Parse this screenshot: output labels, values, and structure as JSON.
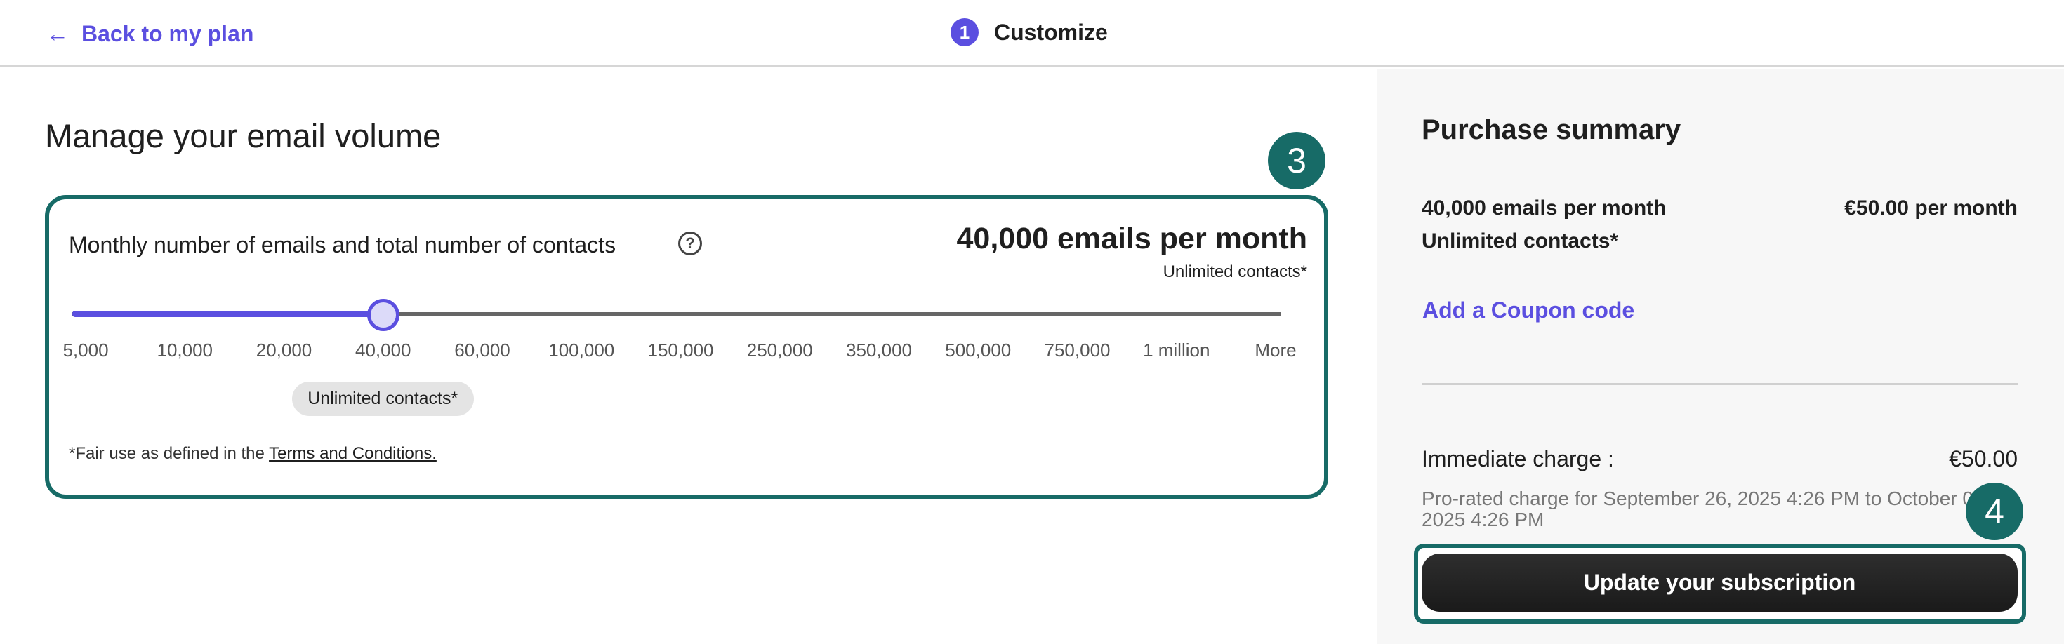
{
  "header": {
    "back_label": "Back to my plan",
    "step_number": "1",
    "step_label": "Customize"
  },
  "main": {
    "title": "Manage your email volume",
    "annotation": "3",
    "slider_label": "Monthly number of emails and total number of contacts",
    "selected_volume": "40,000 emails per month",
    "selected_contacts": "Unlimited contacts*",
    "ticks": [
      "5,000",
      "10,000",
      "20,000",
      "40,000",
      "60,000",
      "100,000",
      "150,000",
      "250,000",
      "350,000",
      "500,000",
      "750,000",
      "1 million",
      "More"
    ],
    "selected_index": 3,
    "pill": "Unlimited contacts*",
    "footnote_prefix": "*Fair use as defined in the ",
    "footnote_link": "Terms and Conditions."
  },
  "summary": {
    "title": "Purchase summary",
    "item_line1": "40,000 emails per month",
    "item_line2": "Unlimited contacts*",
    "price": "€50.00 per month",
    "coupon": "Add a Coupon code",
    "immediate_label": "Immediate charge :",
    "immediate_value": "€50.00",
    "prorated": "Pro-rated charge for September 26, 2025 4:26 PM to October 04, 2025 4:26 PM",
    "annotation": "4",
    "button": "Update your subscription"
  },
  "colors": {
    "accent": "#5b4fe0",
    "annotation": "#176b67"
  }
}
